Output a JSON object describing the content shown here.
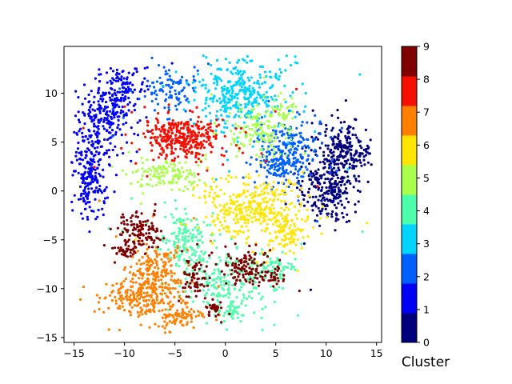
{
  "chart_data": {
    "type": "scatter",
    "title": "",
    "xlabel": "",
    "ylabel": "",
    "xlim": [
      -16,
      15.5
    ],
    "ylim": [
      -15.5,
      14.8
    ],
    "xticks": [
      -15,
      -10,
      -5,
      0,
      5,
      10,
      15
    ],
    "yticks": [
      -15,
      -10,
      -5,
      0,
      5,
      10
    ],
    "grid": false,
    "legend": "none",
    "colorbar": {
      "label": "Cluster",
      "ticks": [
        0,
        1,
        2,
        3,
        4,
        5,
        6,
        7,
        8,
        9
      ],
      "colormap": "jet",
      "levels": 10,
      "colors": [
        "#00007f",
        "#0000f5",
        "#0060ff",
        "#00d4ff",
        "#4cffaa",
        "#aaff4c",
        "#ffe500",
        "#ff7f00",
        "#f50f00",
        "#7f0000"
      ]
    },
    "clusters": [
      {
        "label": 0,
        "blobs": [
          {
            "cx": 11.8,
            "cy": 4.2,
            "sx": 1.3,
            "sy": 1.5,
            "n": 220
          },
          {
            "cx": 10.2,
            "cy": 0.2,
            "sx": 1.4,
            "sy": 1.6,
            "n": 230
          }
        ],
        "sparse": 25
      },
      {
        "label": 1,
        "blobs": [
          {
            "cx": -12.0,
            "cy": 7.5,
            "sx": 1.4,
            "sy": 2.0,
            "n": 230
          },
          {
            "cx": -13.5,
            "cy": 1.5,
            "sx": 0.8,
            "sy": 2.2,
            "n": 200
          },
          {
            "cx": -10.0,
            "cy": 10.5,
            "sx": 1.0,
            "sy": 1.0,
            "n": 90
          }
        ],
        "sparse": 20
      },
      {
        "label": 2,
        "blobs": [
          {
            "cx": 5.8,
            "cy": 3.2,
            "sx": 1.2,
            "sy": 1.3,
            "n": 200
          },
          {
            "cx": -5.5,
            "cy": 10.2,
            "sx": 1.3,
            "sy": 1.0,
            "n": 80
          },
          {
            "cx": 6.2,
            "cy": 5.5,
            "sx": 0.9,
            "sy": 0.6,
            "n": 40
          }
        ],
        "sparse": 90
      },
      {
        "label": 3,
        "blobs": [
          {
            "cx": 1.5,
            "cy": 10.0,
            "sx": 2.2,
            "sy": 1.7,
            "n": 330
          }
        ],
        "sparse": 35
      },
      {
        "label": 4,
        "blobs": [
          {
            "cx": -4.0,
            "cy": -5.0,
            "sx": 1.2,
            "sy": 1.4,
            "n": 140
          },
          {
            "cx": 0.5,
            "cy": -9.0,
            "sx": 2.5,
            "sy": 1.6,
            "n": 220
          },
          {
            "cx": 5.0,
            "cy": -7.8,
            "sx": 1.0,
            "sy": 0.6,
            "n": 50
          },
          {
            "cx": 0.5,
            "cy": -12.3,
            "sx": 0.8,
            "sy": 0.5,
            "n": 30
          }
        ],
        "sparse": 35
      },
      {
        "label": 5,
        "blobs": [
          {
            "cx": -5.8,
            "cy": 1.5,
            "sx": 1.6,
            "sy": 0.7,
            "n": 120
          },
          {
            "cx": 3.0,
            "cy": 6.0,
            "sx": 1.6,
            "sy": 1.2,
            "n": 130
          },
          {
            "cx": 5.5,
            "cy": 8.3,
            "sx": 0.7,
            "sy": 0.5,
            "n": 30
          }
        ],
        "sparse": 30
      },
      {
        "label": 6,
        "blobs": [
          {
            "cx": 2.5,
            "cy": -1.5,
            "sx": 2.3,
            "sy": 1.4,
            "n": 330
          },
          {
            "cx": 6.0,
            "cy": -4.5,
            "sx": 0.9,
            "sy": 0.9,
            "n": 90
          }
        ],
        "sparse": 20
      },
      {
        "label": 7,
        "blobs": [
          {
            "cx": -7.0,
            "cy": -8.5,
            "sx": 1.5,
            "sy": 1.6,
            "n": 200
          },
          {
            "cx": -9.0,
            "cy": -11.0,
            "sx": 1.8,
            "sy": 1.0,
            "n": 170
          },
          {
            "cx": -4.5,
            "cy": -12.8,
            "sx": 1.2,
            "sy": 0.7,
            "n": 90
          }
        ],
        "sparse": 20
      },
      {
        "label": 8,
        "blobs": [
          {
            "cx": -4.0,
            "cy": 5.5,
            "sx": 2.1,
            "sy": 1.1,
            "n": 330
          }
        ],
        "sparse": 35
      },
      {
        "label": 9,
        "blobs": [
          {
            "cx": -8.5,
            "cy": -4.0,
            "sx": 1.0,
            "sy": 0.9,
            "n": 110
          },
          {
            "cx": -10.0,
            "cy": -6.0,
            "sx": 0.6,
            "sy": 0.5,
            "n": 40
          },
          {
            "cx": -3.0,
            "cy": -9.0,
            "sx": 0.6,
            "sy": 1.0,
            "n": 60
          },
          {
            "cx": 2.0,
            "cy": -7.8,
            "sx": 1.3,
            "sy": 0.9,
            "n": 110
          },
          {
            "cx": -1.0,
            "cy": -12.0,
            "sx": 0.5,
            "sy": 0.4,
            "n": 35
          },
          {
            "cx": 5.0,
            "cy": -9.0,
            "sx": 0.6,
            "sy": 0.4,
            "n": 25
          }
        ],
        "sparse": 20
      }
    ]
  }
}
